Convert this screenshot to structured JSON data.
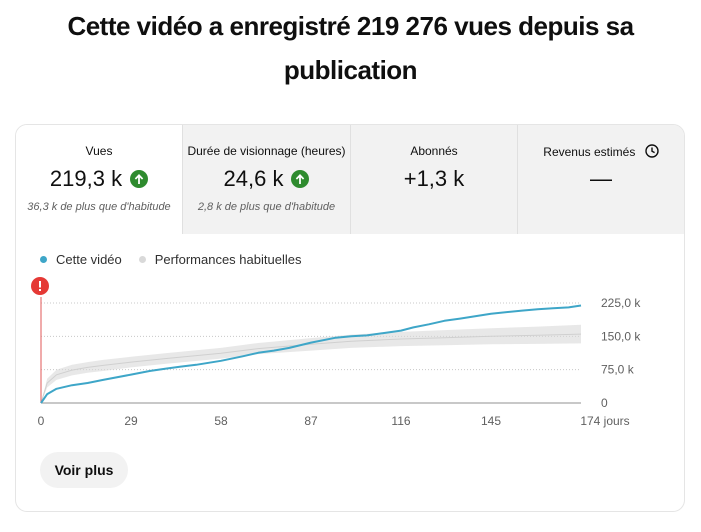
{
  "headline": "Cette vidéo a enregistré 219 276 vues depuis sa publication",
  "metrics": [
    {
      "label": "Vues",
      "value": "219,3 k",
      "sub": "36,3 k de plus que d'habitude",
      "trend": "up"
    },
    {
      "label": "Durée de visionnage (heures)",
      "value": "24,6 k",
      "sub": "2,8 k de plus que d'habitude",
      "trend": "up"
    },
    {
      "label": "Abonnés",
      "value": "+1,3 k",
      "sub": "",
      "trend": "none"
    },
    {
      "label": "Revenus estimés",
      "value": "—",
      "sub": "",
      "trend": "none"
    }
  ],
  "legend": {
    "this_video": "Cette vidéo",
    "typical": "Performances habituelles"
  },
  "colors": {
    "this_video": "#3ea6c8",
    "typical": "#d9d9d9",
    "trend_up": "#2e8b2e",
    "alert": "#e53935"
  },
  "button": {
    "label": "Voir plus"
  },
  "chart_data": {
    "type": "line",
    "x_ticks": [
      "0",
      "29",
      "58",
      "87",
      "116",
      "145",
      "174 jours"
    ],
    "y_ticks": [
      "0",
      "75,0 k",
      "150,0 k",
      "225,0 k"
    ],
    "xlim": [
      0,
      174
    ],
    "ylim": [
      0,
      225
    ],
    "series": [
      {
        "name": "Cette vidéo",
        "x": [
          0,
          2,
          5,
          10,
          15,
          20,
          29,
          35,
          40,
          45,
          50,
          58,
          65,
          70,
          75,
          80,
          87,
          95,
          100,
          105,
          110,
          116,
          120,
          125,
          130,
          135,
          145,
          155,
          160,
          165,
          170,
          174
        ],
        "y": [
          0,
          20,
          32,
          40,
          45,
          52,
          64,
          72,
          77,
          82,
          86,
          95,
          105,
          113,
          118,
          124,
          136,
          147,
          150,
          152,
          157,
          163,
          170,
          177,
          185,
          190,
          201,
          208,
          211,
          213,
          215,
          219.3
        ]
      },
      {
        "name": "Performances habituelles",
        "x": [
          0,
          2,
          5,
          10,
          15,
          20,
          29,
          40,
          58,
          70,
          87,
          100,
          116,
          130,
          145,
          160,
          174
        ],
        "y_low": [
          0,
          35,
          52,
          62,
          68,
          72,
          80,
          88,
          100,
          110,
          118,
          124,
          128,
          130,
          132,
          133,
          134
        ],
        "y_high": [
          0,
          55,
          75,
          86,
          92,
          97,
          104,
          112,
          124,
          135,
          146,
          154,
          160,
          164,
          168,
          172,
          176
        ]
      }
    ]
  }
}
